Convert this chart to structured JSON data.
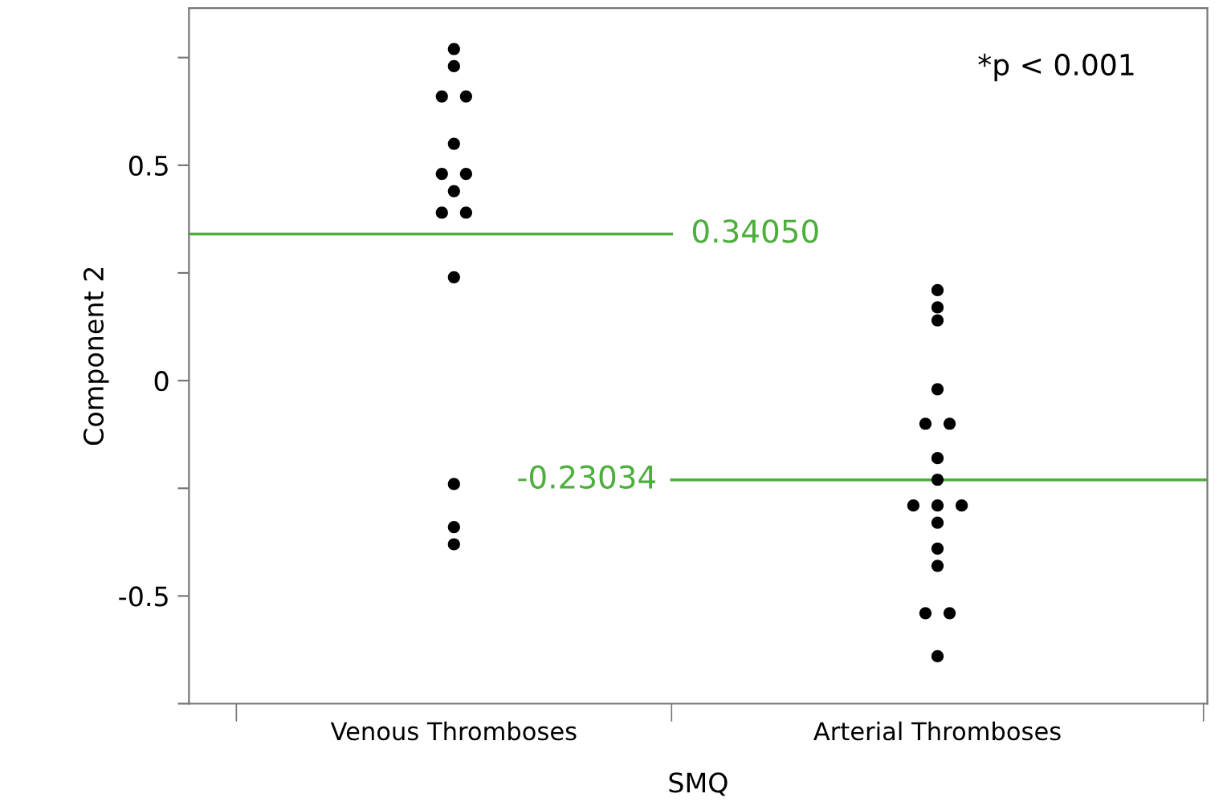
{
  "chart_data": {
    "type": "scatter",
    "xlabel": "SMQ",
    "ylabel": "Component 2",
    "categories": [
      "Venous Thromboses",
      "Arterial Thromboses"
    ],
    "series": [
      {
        "color": "#000000",
        "x": [
          "Venous Thromboses",
          "Venous Thromboses",
          "Venous Thromboses",
          "Venous Thromboses",
          "Venous Thromboses",
          "Venous Thromboses",
          "Venous Thromboses",
          "Venous Thromboses",
          "Venous Thromboses",
          "Venous Thromboses",
          "Venous Thromboses",
          "Venous Thromboses",
          "Venous Thromboses",
          "Venous Thromboses"
        ],
        "values": [
          0.77,
          0.73,
          0.66,
          0.66,
          0.55,
          0.48,
          0.48,
          0.44,
          0.39,
          0.39,
          0.24,
          -0.24,
          -0.34,
          -0.38
        ]
      },
      {
        "color": "#000000",
        "x": [
          "Arterial Thromboses",
          "Arterial Thromboses",
          "Arterial Thromboses",
          "Arterial Thromboses",
          "Arterial Thromboses",
          "Arterial Thromboses",
          "Arterial Thromboses",
          "Arterial Thromboses",
          "Arterial Thromboses",
          "Arterial Thromboses",
          "Arterial Thromboses",
          "Arterial Thromboses",
          "Arterial Thromboses",
          "Arterial Thromboses",
          "Arterial Thromboses",
          "Arterial Thromboses",
          "Arterial Thromboses"
        ],
        "values": [
          0.21,
          0.17,
          0.14,
          -0.02,
          -0.1,
          -0.1,
          -0.18,
          -0.23,
          -0.29,
          -0.29,
          -0.29,
          -0.33,
          -0.39,
          -0.43,
          -0.54,
          -0.54,
          -0.64
        ]
      }
    ],
    "marker": "circle",
    "grid": false,
    "ylim": [
      -0.75,
      0.865
    ],
    "yticks": [
      {
        "value": -0.75,
        "label": null
      },
      -0.5,
      {
        "value": -0.25,
        "label": null
      },
      0,
      {
        "value": 0.25,
        "label": null
      },
      0.5,
      {
        "value": 0.75,
        "label": null
      }
    ],
    "ref_lines": [
      {
        "axis": "y",
        "value": 0.3405,
        "label": "0.34050",
        "color": "#4caf3c"
      },
      {
        "axis": "y",
        "value": -0.23034,
        "label": "-0.23034",
        "color": "#4caf3c"
      }
    ],
    "annotations": [
      "*p < 0.001"
    ]
  }
}
